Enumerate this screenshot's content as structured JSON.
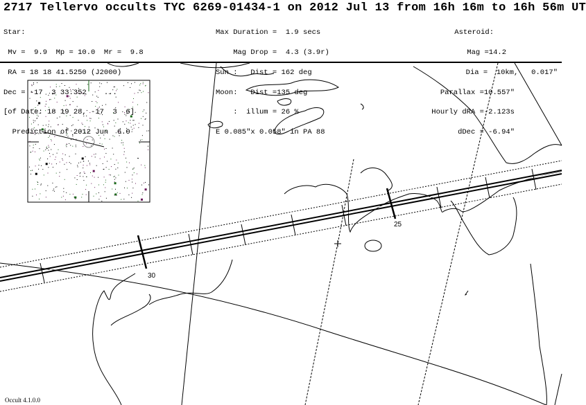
{
  "title": "2717 Tellervo occults TYC 6269-01434-1 on 2012 Jul 13 from 16h 16m to 16h 56m UT",
  "star": {
    "heading": "Star:",
    "mags": " Mv =  9.9  Mp = 10.0  Mr =  9.8",
    "ra": " RA = 18 18 41.5250 (J2000)",
    "dec": "Dec = -17  3 33.352    ...",
    "of_date": "[of Date: 18 19 28, -17  3  6]",
    "prediction": "  Prediction of 2012 Jun  6.0"
  },
  "event": {
    "max_duration": "Max Duration =  1.9 secs",
    "mag_drop": "    Mag Drop =  4.3 (3.9r)",
    "sun": "Sun :   Dist = 162 deg",
    "moon": "Moon:   Dist =135 deg",
    "illum": "    :  illum = 26 %",
    "ellipse": "E 0.085\"x 0.058\" in PA 88"
  },
  "asteroid": {
    "heading": "Asteroid:",
    "mag": "Mag =14.2",
    "dia": "Dia =  10km,   0.017\"",
    "parallax": "Parallax =10.557\"",
    "hourly_dra": "Hourly dRA =-2.123s",
    "ddec": "dDec = -6.94\""
  },
  "path_labels": {
    "t30": "30",
    "t25": "25"
  },
  "footer": "Occult 4.1.0.0"
}
